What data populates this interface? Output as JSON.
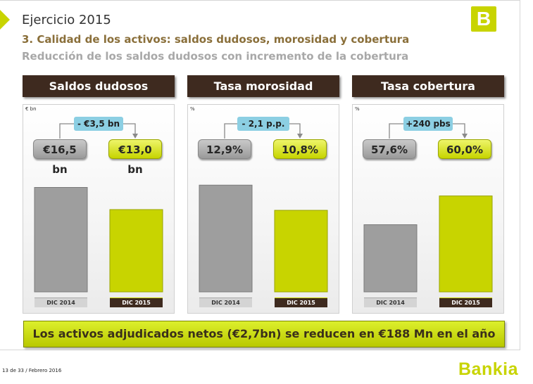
{
  "header": {
    "title": "Ejercicio 2015",
    "subtitle": "3. Calidad de los activos: saldos dudosos, morosidad y cobertura",
    "subtitle2": "Reducción de los saldos dudosos con incremento de la cobertura"
  },
  "logo_letter": "B",
  "colors": {
    "accent": "#c8d400",
    "dark": "#3e2a1f",
    "bar_gray": "#9e9e9e",
    "callout": "#8ccfe3"
  },
  "chart_data": [
    {
      "type": "bar",
      "title": "Saldos dudosos",
      "unit": "€ bn",
      "categories": [
        "DIC 2014",
        "DIC 2015"
      ],
      "values": [
        16.5,
        13.0
      ],
      "value_labels": [
        "€16,5 bn",
        "€13,0 bn"
      ],
      "delta_label": "- €3,5 bn",
      "ylim": [
        0,
        18
      ]
    },
    {
      "type": "bar",
      "title": "Tasa morosidad",
      "unit": "%",
      "categories": [
        "DIC 2014",
        "DIC 2015"
      ],
      "values": [
        12.9,
        10.8
      ],
      "value_labels": [
        "12,9%",
        "10,8%"
      ],
      "delta_label": "- 2,1 p.p.",
      "ylim": [
        4,
        13.5
      ]
    },
    {
      "type": "bar",
      "title": "Tasa cobertura",
      "unit": "%",
      "categories": [
        "DIC 2014",
        "DIC 2015"
      ],
      "values": [
        57.6,
        60.0
      ],
      "value_labels": [
        "57,6%",
        "60,0%"
      ],
      "delta_label": "+240 pbs",
      "ylim": [
        52,
        61.5
      ]
    }
  ],
  "footer_banner": "Los activos adjudicados netos (€2,7bn) se reducen en €188 Mn en el año",
  "page_info": "13 de 33  /  Febrero 2016",
  "brand_name": "Bankia"
}
